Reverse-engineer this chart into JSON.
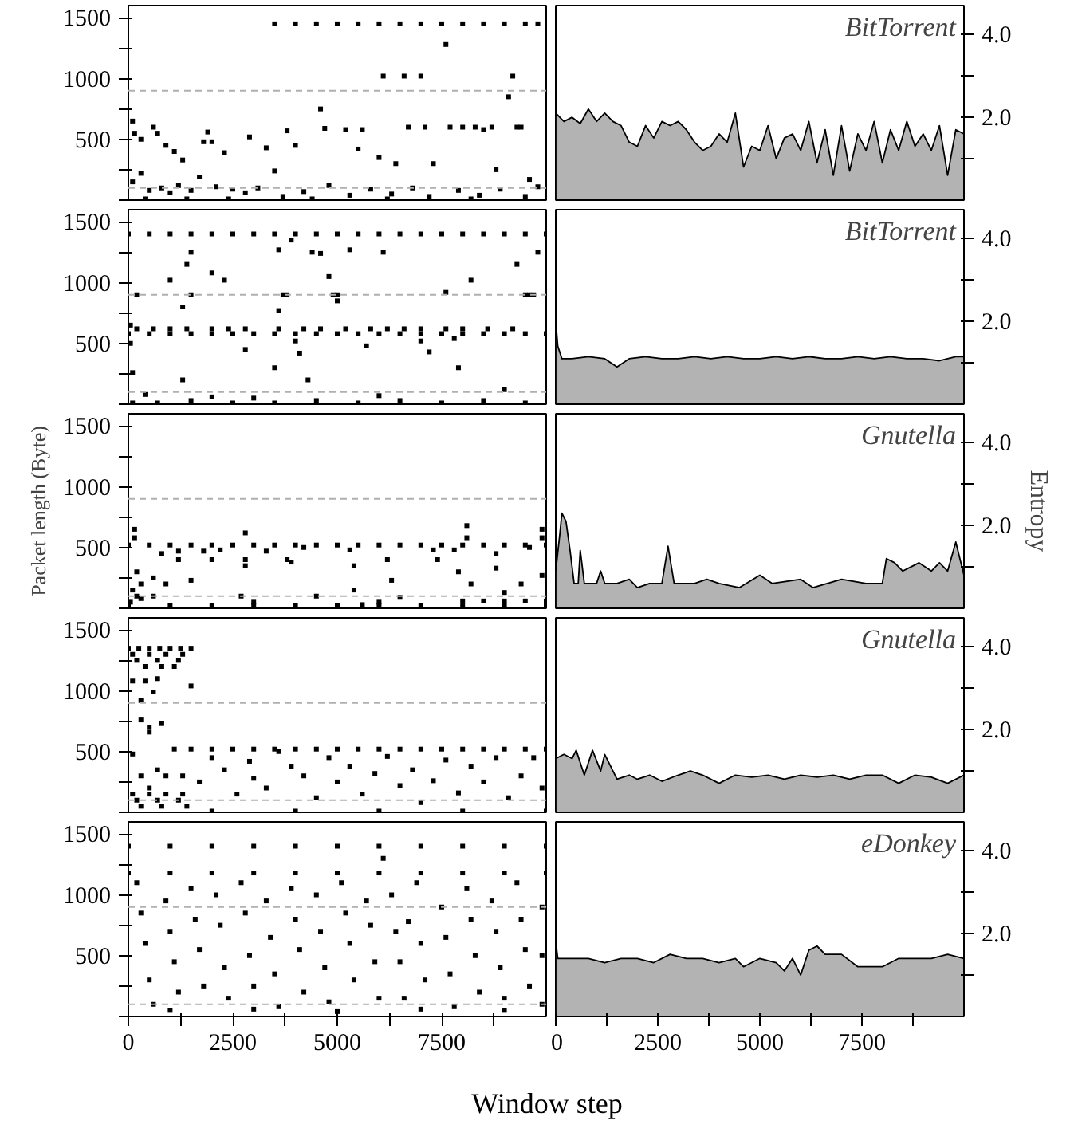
{
  "chart_data": [
    {
      "type": "scatter",
      "marker": "square",
      "tick_labels": "y",
      "xlim": [
        0,
        10000
      ],
      "ylim": [
        0,
        1600
      ],
      "yticks": [
        {
          "value": 0,
          "label": null
        },
        {
          "value": 250,
          "label": null
        },
        500,
        {
          "value": 750,
          "label": null
        },
        1000,
        {
          "value": 1250,
          "label": null
        },
        1500
      ],
      "ref_lines": [
        {
          "axis": "y",
          "value": 900,
          "color": "#b0b0b0",
          "line_style": "dashed"
        },
        {
          "axis": "y",
          "value": 100,
          "color": "#b0b0b0",
          "line_style": "dashed"
        }
      ],
      "series": [
        {
          "color": "#000000",
          "x": [
            3500,
            4000,
            4500,
            5000,
            5500,
            6000,
            6500,
            7000,
            7500,
            8000,
            8500,
            9000,
            9500,
            9800,
            100,
            150,
            300,
            600,
            700,
            900,
            1100,
            1300,
            1800,
            1900,
            2000,
            2300,
            2900,
            3300,
            3500,
            3800,
            4000,
            4600,
            4700,
            5200,
            5600,
            6100,
            6600,
            6700,
            7000,
            7100,
            7600,
            7700,
            8000,
            8300,
            8500,
            8700,
            9200,
            9300,
            9400,
            9100,
            5500,
            6000,
            6400,
            7300,
            8800,
            9600,
            100,
            300,
            500,
            800,
            1000,
            1200,
            1500,
            1700,
            2100,
            2500,
            2800,
            3100,
            3700,
            4200,
            4800,
            5300,
            5800,
            6300,
            6800,
            7200,
            7900,
            8400,
            8900,
            9500,
            9800,
            400,
            1400,
            2400,
            4400,
            6200,
            8200
          ],
          "values": [
            1450,
            1450,
            1450,
            1450,
            1450,
            1450,
            1450,
            1450,
            1450,
            1450,
            1450,
            1450,
            1450,
            1450,
            650,
            550,
            500,
            600,
            550,
            450,
            400,
            330,
            480,
            560,
            480,
            390,
            520,
            430,
            240,
            570,
            450,
            750,
            590,
            580,
            580,
            1020,
            1020,
            600,
            1020,
            600,
            1280,
            600,
            600,
            600,
            580,
            600,
            1020,
            600,
            600,
            850,
            420,
            350,
            300,
            300,
            250,
            170,
            150,
            220,
            80,
            100,
            60,
            120,
            80,
            190,
            110,
            90,
            60,
            100,
            30,
            70,
            120,
            40,
            90,
            50,
            100,
            30,
            80,
            40,
            90,
            30,
            110,
            10,
            10,
            10,
            10,
            10,
            10
          ]
        }
      ]
    },
    {
      "type": "area",
      "tick_labels": "y2",
      "annotations": [
        "BitTorrent"
      ],
      "xlim": [
        0,
        10000
      ],
      "y2lim": [
        0,
        4.7
      ],
      "y2ticks": [
        {
          "value": 1,
          "label": null
        },
        {
          "value": 2,
          "label": "2.0"
        },
        {
          "value": 3,
          "label": null
        },
        {
          "value": 4,
          "label": "4.0"
        }
      ],
      "series": [
        {
          "color": "#b3b3b3",
          "axis": "y2",
          "x": [
            0,
            200,
            400,
            600,
            800,
            1000,
            1200,
            1400,
            1600,
            1800,
            2000,
            2200,
            2400,
            2600,
            2800,
            3000,
            3200,
            3400,
            3600,
            3800,
            4000,
            4200,
            4400,
            4600,
            4800,
            5000,
            5200,
            5400,
            5600,
            5800,
            6000,
            6200,
            6400,
            6600,
            6800,
            7000,
            7200,
            7400,
            7600,
            7800,
            8000,
            8200,
            8400,
            8600,
            8800,
            9000,
            9200,
            9400,
            9600,
            9800,
            10000
          ],
          "values": [
            2.1,
            1.9,
            2.0,
            1.85,
            2.2,
            1.9,
            2.1,
            1.9,
            1.8,
            1.4,
            1.3,
            1.8,
            1.5,
            1.9,
            1.8,
            1.9,
            1.7,
            1.4,
            1.2,
            1.3,
            1.6,
            1.4,
            2.1,
            0.8,
            1.3,
            1.2,
            1.8,
            1.0,
            1.5,
            1.6,
            1.2,
            1.9,
            0.9,
            1.7,
            0.6,
            1.8,
            0.7,
            1.6,
            1.2,
            1.9,
            0.9,
            1.7,
            1.2,
            1.9,
            1.3,
            1.6,
            1.2,
            1.8,
            0.6,
            1.7,
            1.6
          ]
        }
      ]
    },
    {
      "type": "scatter",
      "marker": "square",
      "tick_labels": "y",
      "xlim": [
        0,
        10000
      ],
      "ylim": [
        0,
        1600
      ],
      "yticks": [
        {
          "value": 0,
          "label": null
        },
        {
          "value": 250,
          "label": null
        },
        500,
        {
          "value": 750,
          "label": null
        },
        1000,
        {
          "value": 1250,
          "label": null
        },
        1500
      ],
      "ref_lines": [
        {
          "axis": "y",
          "value": 900,
          "color": "#b0b0b0",
          "line_style": "dashed"
        },
        {
          "axis": "y",
          "value": 100,
          "color": "#b0b0b0",
          "line_style": "dashed"
        }
      ],
      "series": [
        {
          "color": "#000000",
          "x": [
            0,
            500,
            1000,
            1500,
            2000,
            2500,
            3000,
            3500,
            4000,
            4500,
            5000,
            5500,
            6000,
            6500,
            7000,
            7500,
            8000,
            8500,
            9000,
            9500,
            10000,
            0,
            500,
            1000,
            1500,
            2000,
            2500,
            3000,
            3500,
            4000,
            4500,
            5000,
            5500,
            6000,
            6500,
            7000,
            7500,
            8000,
            8500,
            9000,
            9500,
            10000,
            200,
            600,
            1000,
            1400,
            2000,
            2400,
            2800,
            3600,
            4200,
            4600,
            5200,
            5800,
            6200,
            6600,
            7000,
            7600,
            8000,
            8600,
            9200,
            200,
            1500,
            3700,
            3800,
            4900,
            5000,
            9600,
            9700,
            50,
            50,
            100,
            1000,
            1400,
            1500,
            1300,
            1300,
            2000,
            2300,
            2800,
            3500,
            3600,
            3600,
            3900,
            4000,
            4600,
            4400,
            4800,
            5000,
            5300,
            5700,
            6100,
            7200,
            7000,
            7600,
            7800,
            8200,
            7900,
            9300,
            9500,
            9800,
            4300,
            4100,
            100,
            700,
            1500,
            2500,
            3000,
            3500,
            4500,
            5500,
            6500,
            7500,
            8500,
            9500,
            400,
            2000,
            6000,
            9000
          ],
          "values": [
            1400,
            1400,
            1400,
            1400,
            1400,
            1400,
            1400,
            1400,
            1400,
            1400,
            1400,
            1400,
            1400,
            1400,
            1400,
            1400,
            1400,
            1400,
            1400,
            1400,
            1400,
            580,
            580,
            580,
            580,
            580,
            580,
            580,
            580,
            580,
            580,
            580,
            580,
            580,
            580,
            580,
            580,
            580,
            580,
            580,
            580,
            580,
            620,
            620,
            620,
            620,
            620,
            620,
            620,
            620,
            620,
            620,
            620,
            620,
            620,
            620,
            620,
            620,
            620,
            620,
            620,
            900,
            900,
            900,
            900,
            900,
            900,
            900,
            900,
            500,
            650,
            260,
            1020,
            1150,
            1250,
            800,
            200,
            1080,
            1020,
            450,
            300,
            770,
            1270,
            1350,
            520,
            1240,
            1250,
            1050,
            850,
            1270,
            480,
            1250,
            430,
            520,
            920,
            540,
            1020,
            300,
            1150,
            900,
            1250,
            200,
            420,
            10,
            10,
            30,
            10,
            50,
            10,
            30,
            10,
            30,
            10,
            30,
            10,
            80,
            60,
            70,
            120
          ]
        }
      ]
    },
    {
      "type": "area",
      "tick_labels": "y2",
      "annotations": [
        "BitTorrent"
      ],
      "xlim": [
        0,
        10000
      ],
      "y2lim": [
        0,
        4.7
      ],
      "y2ticks": [
        {
          "value": 1,
          "label": null
        },
        {
          "value": 2,
          "label": "2.0"
        },
        {
          "value": 3,
          "label": null
        },
        {
          "value": 4,
          "label": "4.0"
        }
      ],
      "series": [
        {
          "color": "#b3b3b3",
          "axis": "y2",
          "x": [
            0,
            50,
            150,
            400,
            800,
            1200,
            1500,
            1800,
            2200,
            2600,
            3000,
            3400,
            3800,
            4200,
            4600,
            5000,
            5400,
            5800,
            6200,
            6600,
            7000,
            7400,
            7800,
            8200,
            8600,
            9000,
            9400,
            9800,
            10000
          ],
          "values": [
            2.0,
            1.4,
            1.1,
            1.1,
            1.15,
            1.1,
            0.9,
            1.1,
            1.15,
            1.1,
            1.1,
            1.15,
            1.1,
            1.15,
            1.1,
            1.1,
            1.15,
            1.1,
            1.15,
            1.1,
            1.1,
            1.15,
            1.1,
            1.15,
            1.1,
            1.1,
            1.05,
            1.15,
            1.15
          ]
        }
      ]
    },
    {
      "type": "scatter",
      "marker": "square",
      "tick_labels": "y",
      "ylabel": "Packet length (Byte)",
      "xlim": [
        0,
        10000
      ],
      "ylim": [
        0,
        1600
      ],
      "yticks": [
        {
          "value": 0,
          "label": null
        },
        {
          "value": 250,
          "label": null
        },
        500,
        {
          "value": 750,
          "label": null
        },
        1000,
        {
          "value": 1250,
          "label": null
        },
        1500
      ],
      "ref_lines": [
        {
          "axis": "y",
          "value": 900,
          "color": "#b0b0b0",
          "line_style": "dashed"
        },
        {
          "axis": "y",
          "value": 100,
          "color": "#b0b0b0",
          "line_style": "dashed"
        }
      ],
      "series": [
        {
          "color": "#000000",
          "x": [
            0,
            500,
            1000,
            1500,
            2000,
            2500,
            3000,
            3500,
            4000,
            4500,
            5000,
            5500,
            6000,
            6500,
            7000,
            7500,
            8000,
            8500,
            9000,
            9500,
            10000,
            0,
            1000,
            2000,
            3000,
            4000,
            5000,
            6000,
            7000,
            8000,
            9000,
            10000,
            8000,
            8500,
            9000,
            9500,
            10000,
            150,
            150,
            200,
            100,
            200,
            300,
            50,
            300,
            600,
            600,
            800,
            900,
            1200,
            1200,
            1500,
            1800,
            2000,
            2200,
            2800,
            2800,
            2800,
            2700,
            3000,
            3300,
            3800,
            3900,
            4200,
            4500,
            5300,
            5400,
            5400,
            6000,
            6200,
            6300,
            7300,
            7400,
            7800,
            8100,
            8100,
            8200,
            7900,
            8800,
            8800,
            9000,
            9400,
            9600,
            9900,
            9900,
            9900,
            6500,
            5600
          ],
          "values": [
            520,
            520,
            520,
            520,
            520,
            520,
            520,
            520,
            520,
            520,
            520,
            520,
            520,
            520,
            520,
            520,
            520,
            520,
            520,
            520,
            520,
            20,
            20,
            20,
            20,
            20,
            20,
            20,
            20,
            20,
            20,
            20,
            60,
            60,
            60,
            60,
            60,
            650,
            580,
            300,
            150,
            100,
            80,
            50,
            200,
            250,
            100,
            450,
            200,
            470,
            400,
            230,
            470,
            400,
            480,
            620,
            400,
            350,
            100,
            50,
            470,
            400,
            380,
            500,
            100,
            480,
            350,
            150,
            50,
            400,
            230,
            480,
            400,
            480,
            680,
            580,
            200,
            300,
            450,
            330,
            130,
            200,
            500,
            650,
            580,
            270,
            90,
            30
          ]
        }
      ]
    },
    {
      "type": "area",
      "tick_labels": "y2",
      "annotations": [
        "Gnutella"
      ],
      "y2label": "Entropy",
      "xlim": [
        0,
        10000
      ],
      "y2lim": [
        0,
        4.7
      ],
      "y2ticks": [
        {
          "value": 1,
          "label": null
        },
        {
          "value": 2,
          "label": "2.0"
        },
        {
          "value": 3,
          "label": null
        },
        {
          "value": 4,
          "label": "4.0"
        }
      ],
      "series": [
        {
          "color": "#b3b3b3",
          "axis": "y2",
          "x": [
            0,
            100,
            150,
            250,
            350,
            450,
            550,
            600,
            700,
            1000,
            1100,
            1200,
            1500,
            1800,
            2000,
            2300,
            2600,
            2750,
            2900,
            3400,
            3700,
            4000,
            4500,
            5000,
            5300,
            6000,
            6300,
            7000,
            7600,
            8000,
            8100,
            8300,
            8500,
            8700,
            8900,
            9200,
            9400,
            9600,
            9800,
            10000
          ],
          "values": [
            0.9,
            1.8,
            2.3,
            2.1,
            1.4,
            0.6,
            0.6,
            1.4,
            0.6,
            0.6,
            0.9,
            0.6,
            0.6,
            0.7,
            0.5,
            0.6,
            0.6,
            1.5,
            0.6,
            0.6,
            0.7,
            0.6,
            0.5,
            0.8,
            0.6,
            0.7,
            0.5,
            0.7,
            0.6,
            0.6,
            1.2,
            1.1,
            0.9,
            1.0,
            1.1,
            0.9,
            1.1,
            0.9,
            1.6,
            0.8
          ]
        }
      ]
    },
    {
      "type": "scatter",
      "marker": "square",
      "tick_labels": "y",
      "xlim": [
        0,
        10000
      ],
      "ylim": [
        0,
        1600
      ],
      "yticks": [
        {
          "value": 0,
          "label": null
        },
        {
          "value": 250,
          "label": null
        },
        500,
        {
          "value": 750,
          "label": null
        },
        1000,
        {
          "value": 1250,
          "label": null
        },
        1500
      ],
      "ref_lines": [
        {
          "axis": "y",
          "value": 900,
          "color": "#b0b0b0",
          "line_style": "dashed"
        },
        {
          "axis": "y",
          "value": 100,
          "color": "#b0b0b0",
          "line_style": "dashed"
        }
      ],
      "series": [
        {
          "color": "#000000",
          "x": [
            0,
            250,
            500,
            750,
            1000,
            1250,
            1500,
            100,
            500,
            900,
            1300,
            200,
            700,
            1200,
            400,
            800,
            1100,
            1500,
            2000,
            2500,
            3000,
            3500,
            4000,
            4500,
            5000,
            5500,
            6000,
            6500,
            7000,
            7500,
            8000,
            8500,
            9000,
            9500,
            10000,
            100,
            300,
            400,
            600,
            700,
            300,
            500,
            500,
            800,
            100,
            300,
            500,
            700,
            900,
            1100,
            1300,
            1500,
            100,
            500,
            900,
            1300,
            200,
            700,
            1200,
            300,
            800,
            1400,
            1700,
            2000,
            2300,
            2600,
            2900,
            3000,
            3300,
            3600,
            3900,
            4200,
            4500,
            4800,
            5000,
            5300,
            5600,
            5900,
            6200,
            6500,
            6800,
            7000,
            7300,
            7600,
            7900,
            8200,
            8500,
            8800,
            9100,
            9400,
            9700,
            9900,
            2000,
            4000,
            6000,
            8000,
            10000
          ],
          "values": [
            1350,
            1350,
            1350,
            1350,
            1350,
            1350,
            1350,
            1300,
            1300,
            1300,
            1300,
            1250,
            1250,
            1250,
            1200,
            1200,
            1200,
            520,
            520,
            520,
            520,
            520,
            520,
            520,
            520,
            520,
            520,
            520,
            520,
            520,
            520,
            520,
            520,
            520,
            520,
            1080,
            920,
            1080,
            990,
            1100,
            760,
            700,
            660,
            730,
            480,
            300,
            200,
            350,
            300,
            520,
            300,
            1040,
            150,
            150,
            150,
            150,
            100,
            100,
            100,
            50,
            50,
            50,
            250,
            450,
            350,
            150,
            420,
            280,
            200,
            500,
            380,
            300,
            120,
            450,
            250,
            380,
            150,
            320,
            460,
            220,
            350,
            80,
            260,
            430,
            160,
            380,
            250,
            450,
            120,
            300,
            450,
            200,
            10,
            10,
            10,
            10,
            10
          ]
        }
      ]
    },
    {
      "type": "area",
      "tick_labels": "y2",
      "annotations": [
        "Gnutella"
      ],
      "xlim": [
        0,
        10000
      ],
      "y2lim": [
        0,
        4.7
      ],
      "y2ticks": [
        {
          "value": 1,
          "label": null
        },
        {
          "value": 2,
          "label": "2.0"
        },
        {
          "value": 3,
          "label": null
        },
        {
          "value": 4,
          "label": "4.0"
        }
      ],
      "series": [
        {
          "color": "#b3b3b3",
          "axis": "y2",
          "x": [
            0,
            200,
            400,
            500,
            700,
            900,
            1100,
            1200,
            1500,
            1800,
            2000,
            2300,
            2600,
            3000,
            3300,
            3600,
            4000,
            4400,
            4800,
            5200,
            5600,
            6000,
            6400,
            6800,
            7200,
            7600,
            8000,
            8400,
            8800,
            9200,
            9600,
            10000
          ],
          "values": [
            1.3,
            1.4,
            1.3,
            1.5,
            0.9,
            1.5,
            1.0,
            1.4,
            0.8,
            0.9,
            0.8,
            0.9,
            0.75,
            0.9,
            1.0,
            0.9,
            0.7,
            0.9,
            0.85,
            0.9,
            0.8,
            0.9,
            0.85,
            0.9,
            0.8,
            0.9,
            0.9,
            0.7,
            0.9,
            0.85,
            0.7,
            0.9
          ]
        }
      ]
    },
    {
      "type": "scatter",
      "marker": "square",
      "xlabel": "Window step",
      "xlim": [
        0,
        10000
      ],
      "xticks": [
        0,
        {
          "value": 1250,
          "label": null
        },
        2500,
        {
          "value": 3750,
          "label": null
        },
        5000,
        {
          "value": 6250,
          "label": null
        },
        7500,
        {
          "value": 8750,
          "label": null
        }
      ],
      "ylim": [
        0,
        1600
      ],
      "yticks": [
        {
          "value": 0,
          "label": null
        },
        {
          "value": 250,
          "label": null
        },
        500,
        {
          "value": 750,
          "label": null
        },
        1000,
        {
          "value": 1250,
          "label": null
        },
        1500
      ],
      "ref_lines": [
        {
          "axis": "y",
          "value": 900,
          "color": "#b0b0b0",
          "line_style": "dashed"
        },
        {
          "axis": "y",
          "value": 100,
          "color": "#b0b0b0",
          "line_style": "dashed"
        }
      ],
      "series": [
        {
          "color": "#000000",
          "x": [
            0,
            1000,
            2000,
            3000,
            4000,
            5000,
            6000,
            7000,
            8000,
            9000,
            10000,
            0,
            1000,
            2000,
            3000,
            4000,
            5000,
            6000,
            7000,
            8000,
            9000,
            10000,
            6100,
            200,
            300,
            400,
            500,
            600,
            900,
            1000,
            1100,
            1200,
            1500,
            1600,
            1700,
            1800,
            2100,
            2200,
            2300,
            2400,
            2700,
            2800,
            2900,
            3000,
            3300,
            3400,
            3500,
            3600,
            3900,
            4000,
            4100,
            4200,
            4500,
            4600,
            4700,
            4800,
            5100,
            5200,
            5300,
            5400,
            5700,
            5800,
            5900,
            6000,
            6300,
            6400,
            6500,
            6600,
            6700,
            6900,
            7000,
            7100,
            7500,
            7600,
            7700,
            7800,
            8100,
            8200,
            8300,
            8400,
            8700,
            8800,
            8900,
            9000,
            9300,
            9400,
            9500,
            9600,
            9900,
            9900,
            9900,
            1000,
            3000,
            5000,
            7000,
            9000
          ],
          "values": [
            1400,
            1400,
            1400,
            1400,
            1400,
            1400,
            1400,
            1400,
            1400,
            1400,
            1400,
            1180,
            1180,
            1180,
            1180,
            1180,
            1180,
            1180,
            1180,
            1180,
            1180,
            1180,
            1300,
            1100,
            850,
            600,
            300,
            100,
            950,
            700,
            450,
            200,
            1050,
            800,
            550,
            250,
            1000,
            750,
            400,
            150,
            1100,
            850,
            500,
            250,
            950,
            650,
            350,
            80,
            1050,
            800,
            550,
            200,
            1000,
            700,
            400,
            120,
            1100,
            850,
            600,
            300,
            950,
            750,
            450,
            150,
            1000,
            700,
            450,
            150,
            780,
            1100,
            600,
            300,
            900,
            650,
            350,
            80,
            1050,
            800,
            500,
            200,
            950,
            700,
            400,
            150,
            1100,
            800,
            550,
            250,
            900,
            500,
            100,
            50,
            60,
            40,
            60,
            50
          ]
        }
      ]
    },
    {
      "type": "area",
      "annotations": [
        "eDonkey"
      ],
      "xlim": [
        0,
        10000
      ],
      "xticks": [
        0,
        {
          "value": 1250,
          "label": null
        },
        2500,
        {
          "value": 3750,
          "label": null
        },
        5000,
        {
          "value": 6250,
          "label": null
        },
        7500,
        {
          "value": 8750,
          "label": null
        }
      ],
      "y2lim": [
        0,
        4.7
      ],
      "y2ticks": [
        {
          "value": 1,
          "label": null
        },
        {
          "value": 2,
          "label": "2.0"
        },
        {
          "value": 3,
          "label": null
        },
        {
          "value": 4,
          "label": "4.0"
        }
      ],
      "series": [
        {
          "color": "#b3b3b3",
          "axis": "y2",
          "x": [
            0,
            50,
            400,
            800,
            1200,
            1600,
            2000,
            2400,
            2800,
            3200,
            3600,
            4000,
            4400,
            4600,
            5000,
            5400,
            5600,
            5800,
            6000,
            6200,
            6400,
            6600,
            7000,
            7400,
            7800,
            8000,
            8400,
            8800,
            9200,
            9600,
            10000
          ],
          "values": [
            1.8,
            1.4,
            1.4,
            1.4,
            1.3,
            1.4,
            1.4,
            1.3,
            1.5,
            1.4,
            1.4,
            1.3,
            1.4,
            1.2,
            1.4,
            1.3,
            1.1,
            1.4,
            1.0,
            1.6,
            1.7,
            1.5,
            1.5,
            1.2,
            1.2,
            1.2,
            1.4,
            1.4,
            1.4,
            1.5,
            1.4
          ]
        }
      ]
    }
  ]
}
